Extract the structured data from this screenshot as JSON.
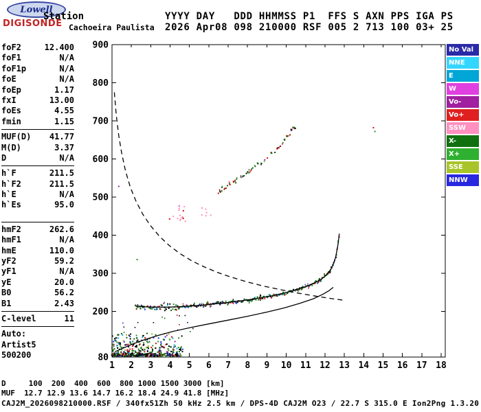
{
  "logo": {
    "top": "Lowell",
    "bottom": "DIGISONDE"
  },
  "header": {
    "row_label": "Station",
    "station_name": "Cachoeira Paulista",
    "fields_labels": "YYYY DAY   DDD HHMMSS P1  FFS S AXN PPS IGA PS",
    "fields_values": "2026 Apr08 098 210000 RSF 005 2 713 100 03+ 25",
    "year": "2026",
    "date": "Apr08",
    "doy": "098",
    "time": "210000",
    "program": "RSF",
    "ffs": "005",
    "s": "2",
    "axn": "713",
    "pps": "100",
    "iga": "03+",
    "ps": "25"
  },
  "params": {
    "groups": [
      [
        {
          "l": "foF2",
          "v": "12.400"
        },
        {
          "l": "foF1",
          "v": "N/A"
        },
        {
          "l": "foF1p",
          "v": "N/A"
        },
        {
          "l": "foE",
          "v": "N/A"
        },
        {
          "l": "foEp",
          "v": "1.17"
        },
        {
          "l": "fxI",
          "v": "13.00"
        },
        {
          "l": "foEs",
          "v": "4.55"
        },
        {
          "l": "fmin",
          "v": "1.15"
        }
      ],
      [
        {
          "l": "MUF(D)",
          "v": "41.77"
        },
        {
          "l": "M(D)",
          "v": "3.37"
        },
        {
          "l": "D",
          "v": "N/A"
        }
      ],
      [
        {
          "l": "h`F",
          "v": "211.5"
        },
        {
          "l": "h`F2",
          "v": "211.5"
        },
        {
          "l": "h`E",
          "v": "N/A"
        },
        {
          "l": "h`Es",
          "v": "95.0"
        }
      ],
      [
        {
          "l": "hmF2",
          "v": "262.6"
        },
        {
          "l": "hmF1",
          "v": "N/A"
        },
        {
          "l": "hmE",
          "v": "110.0"
        },
        {
          "l": "yF2",
          "v": "59.2"
        },
        {
          "l": "yF1",
          "v": "N/A"
        },
        {
          "l": "yE",
          "v": "20.0"
        },
        {
          "l": "B0",
          "v": "56.2"
        },
        {
          "l": "B1",
          "v": "2.43"
        }
      ],
      [
        {
          "l": "C-level",
          "v": "11"
        }
      ],
      [
        {
          "l": "Auto:",
          "v": ""
        },
        {
          "l": "Artist5",
          "v": ""
        },
        {
          "l": "500200",
          "v": ""
        }
      ]
    ]
  },
  "legend": {
    "items": [
      {
        "label": "No Val",
        "color": "#2a2aa8"
      },
      {
        "label": "NNE",
        "color": "#33d6ff"
      },
      {
        "label": "E",
        "color": "#00a6d6"
      },
      {
        "label": "W",
        "color": "#e040e0"
      },
      {
        "label": "Vo-",
        "color": "#a020a0"
      },
      {
        "label": "Vo+",
        "color": "#e02020"
      },
      {
        "label": "SSW",
        "color": "#ff90c0"
      },
      {
        "label": "X-",
        "color": "#107010"
      },
      {
        "label": "X+",
        "color": "#30b030"
      },
      {
        "label": "SSE",
        "color": "#a8c428"
      },
      {
        "label": "NNW",
        "color": "#2828e0"
      }
    ]
  },
  "footer": {
    "d_line": "D     100  200  400  600  800 1000 1500 3000 [km]",
    "muf_line": "MUF  12.7 12.9 13.6 14.7 16.2 18.4 24.9 41.8 [MHz]",
    "info_line": "CAJ2M_2026098210000.RSF / 340fx51Zh 50 kHz 2.5 km / DPS-4D CAJ2M O23 / 22.7 S 315.0 E Ion2Png 1.3.20"
  },
  "chart_data": {
    "type": "scatter",
    "title": "Ionogram",
    "x_unit": "MHz",
    "y_unit": "km",
    "xlim": [
      1,
      18
    ],
    "ylim": [
      80,
      900
    ],
    "grid": false,
    "x_ticks": [
      1,
      2,
      3,
      4,
      5,
      6,
      7,
      8,
      9,
      10,
      11,
      12,
      13,
      14,
      15,
      16,
      17,
      18
    ],
    "y_ticks": [
      900,
      800,
      700,
      600,
      500,
      400,
      300,
      200,
      80
    ],
    "muf_table": {
      "d_km": [
        100,
        200,
        400,
        600,
        800,
        1000,
        1500,
        3000
      ],
      "muf_mhz": [
        12.7,
        12.9,
        13.6,
        14.7,
        16.2,
        18.4,
        24.9,
        41.8
      ]
    },
    "key_values": {
      "foF2_MHz": 12.4,
      "fxI_MHz": 13.0,
      "hmF2_km": 262.6,
      "hpF_km": 211.5,
      "hpEs_km": 95.0
    },
    "curves": [
      {
        "name": "transmission-curve",
        "style": "dashed",
        "points": [
          [
            1.12,
            775
          ],
          [
            1.22,
            715
          ],
          [
            1.35,
            660
          ],
          [
            1.5,
            615
          ],
          [
            1.7,
            568
          ],
          [
            1.95,
            525
          ],
          [
            2.25,
            488
          ],
          [
            2.6,
            454
          ],
          [
            3.0,
            424
          ],
          [
            3.45,
            397
          ],
          [
            3.95,
            373
          ],
          [
            4.5,
            352
          ],
          [
            5.1,
            333
          ],
          [
            5.75,
            317
          ],
          [
            6.45,
            302
          ],
          [
            7.2,
            289
          ],
          [
            8.0,
            277
          ],
          [
            8.85,
            266
          ],
          [
            9.7,
            257
          ],
          [
            10.6,
            248
          ],
          [
            11.5,
            240
          ],
          [
            12.4,
            233
          ],
          [
            13.0,
            229
          ]
        ]
      },
      {
        "name": "true-height-profile",
        "style": "solid",
        "points": [
          [
            1.15,
            94
          ],
          [
            1.6,
            104
          ],
          [
            2.1,
            115
          ],
          [
            2.7,
            126
          ],
          [
            3.4,
            137
          ],
          [
            4.2,
            148
          ],
          [
            5.1,
            158
          ],
          [
            6.0,
            167
          ],
          [
            7.0,
            177
          ],
          [
            8.0,
            187
          ],
          [
            9.0,
            198
          ],
          [
            9.9,
            209
          ],
          [
            10.7,
            221
          ],
          [
            11.4,
            233
          ],
          [
            11.9,
            245
          ],
          [
            12.2,
            254
          ],
          [
            12.35,
            260
          ],
          [
            12.43,
            263
          ]
        ]
      },
      {
        "name": "fitted-f-trace",
        "style": "solid",
        "points": [
          [
            2.25,
            214
          ],
          [
            2.7,
            212
          ],
          [
            3.2,
            211
          ],
          [
            3.8,
            211
          ],
          [
            4.4,
            212
          ],
          [
            5.0,
            214
          ],
          [
            5.6,
            216
          ],
          [
            6.2,
            219
          ],
          [
            6.8,
            222
          ],
          [
            7.4,
            226
          ],
          [
            8.0,
            230
          ],
          [
            8.6,
            235
          ],
          [
            9.2,
            240
          ],
          [
            9.8,
            247
          ],
          [
            10.4,
            255
          ],
          [
            10.9,
            263
          ],
          [
            11.4,
            273
          ],
          [
            11.8,
            284
          ],
          [
            12.1,
            296
          ],
          [
            12.3,
            310
          ],
          [
            12.45,
            326
          ],
          [
            12.55,
            342
          ],
          [
            12.62,
            360
          ],
          [
            12.68,
            378
          ],
          [
            12.72,
            396
          ],
          [
            12.74,
            404
          ]
        ]
      }
    ],
    "scatter_series": [
      {
        "name": "f-trace-echoes",
        "path": [
          [
            2.2,
            216
          ],
          [
            2.7,
            212
          ],
          [
            3.2,
            211
          ],
          [
            3.8,
            211
          ],
          [
            4.4,
            212
          ],
          [
            5.0,
            214
          ],
          [
            5.6,
            216
          ],
          [
            6.2,
            219
          ],
          [
            6.8,
            222
          ],
          [
            7.4,
            226
          ],
          [
            8.0,
            230
          ],
          [
            8.6,
            235
          ],
          [
            9.2,
            240
          ],
          [
            9.8,
            247
          ],
          [
            10.4,
            255
          ],
          [
            10.9,
            263
          ],
          [
            11.4,
            273
          ],
          [
            11.8,
            284
          ],
          [
            12.1,
            296
          ],
          [
            12.3,
            310
          ],
          [
            12.45,
            326
          ],
          [
            12.55,
            342
          ],
          [
            12.62,
            360
          ],
          [
            12.68,
            378
          ],
          [
            12.72,
            396
          ],
          [
            12.74,
            404
          ]
        ],
        "step": 0.042,
        "jitter_km": 5,
        "spread_below_f": 4.6,
        "dropout": 0.08,
        "size": 2,
        "palette": [
          [
            "#006400",
            5
          ],
          [
            "#2e8b2e",
            3
          ],
          [
            "#000000",
            3
          ],
          [
            "#cc1111",
            2
          ],
          [
            "#2233cc",
            2
          ],
          [
            "#a020a0",
            1
          ],
          [
            "#00a0c0",
            1
          ]
        ]
      },
      {
        "name": "second-hop-echoes",
        "path": [
          [
            6.4,
            512
          ],
          [
            6.8,
            524
          ],
          [
            7.2,
            537
          ],
          [
            7.6,
            551
          ],
          [
            8.0,
            565
          ],
          [
            8.4,
            580
          ],
          [
            8.8,
            596
          ],
          [
            9.2,
            613
          ],
          [
            9.55,
            630
          ],
          [
            9.85,
            647
          ],
          [
            10.1,
            662
          ],
          [
            10.3,
            676
          ],
          [
            10.5,
            690
          ]
        ],
        "step": 0.05,
        "jitter_km": 8,
        "dropout": 0.3,
        "size": 2,
        "palette": [
          [
            "#cc1111",
            4
          ],
          [
            "#0a6a0a",
            3
          ],
          [
            "#2e8b2e",
            2
          ],
          [
            "#111111",
            2
          ],
          [
            "#a020a0",
            1
          ]
        ]
      }
    ],
    "clusters": [
      {
        "name": "es-layer-noise",
        "f": [
          1.0,
          4.65
        ],
        "f_pow": 1.3,
        "h": [
          83,
          142
        ],
        "h_pow": 2.1,
        "n": 360,
        "size": 2,
        "palette": [
          [
            "#000000",
            4
          ],
          [
            "#0a6a0a",
            4
          ],
          [
            "#2e8b2e",
            3
          ],
          [
            "#cc1111",
            2
          ],
          [
            "#2233cc",
            2
          ],
          [
            "#00b0e0",
            1
          ],
          [
            "#a020a0",
            1
          ],
          [
            "#9ab020",
            1
          ]
        ]
      },
      {
        "name": "es-baseline",
        "f": [
          1.0,
          4.4
        ],
        "f_pow": 1.1,
        "h": [
          82,
          90
        ],
        "h_pow": 1,
        "n": 140,
        "size": 1.7,
        "palette": [
          [
            "#000000",
            6
          ],
          [
            "#0a6a0a",
            2
          ],
          [
            "#cc1111",
            1
          ],
          [
            "#2233cc",
            1
          ]
        ]
      },
      {
        "name": "mid-noise",
        "f": [
          1.1,
          5.6
        ],
        "f_pow": 1,
        "h": [
          142,
          198
        ],
        "h_pow": 1,
        "n": 16,
        "size": 1.6,
        "palette": [
          [
            "#000000",
            3
          ],
          [
            "#0a6a0a",
            3
          ],
          [
            "#cc1111",
            2
          ],
          [
            "#2233cc",
            1
          ]
        ]
      },
      {
        "name": "pink-patch",
        "f": [
          3.85,
          4.9
        ],
        "f_pow": 1,
        "h": [
          436,
          480
        ],
        "h_pow": 1,
        "n": 15,
        "size": 2,
        "palette": [
          [
            "#ff8fb0",
            5
          ],
          [
            "#e055cc",
            2
          ],
          [
            "#cc1111",
            1
          ]
        ]
      },
      {
        "name": "pink-patch-2",
        "f": [
          5.5,
          6.0
        ],
        "f_pow": 1,
        "h": [
          444,
          472
        ],
        "h_pow": 1,
        "n": 6,
        "size": 2,
        "palette": [
          [
            "#ff8fb0",
            4
          ],
          [
            "#e055cc",
            1
          ]
        ]
      }
    ],
    "singles": [
      [
        14.5,
        682,
        "#cc1111"
      ],
      [
        14.58,
        672,
        "#2e8b2e"
      ],
      [
        2.3,
        336,
        "#2e8b2e"
      ],
      [
        1.35,
        528,
        "#a020a0"
      ],
      [
        6.1,
        452,
        "#ff8fb0"
      ]
    ]
  }
}
